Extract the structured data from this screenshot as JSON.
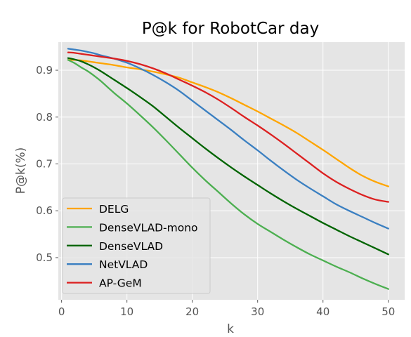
{
  "chart_data": {
    "type": "line",
    "title": "P@k for RobotCar day",
    "xlabel": "k",
    "ylabel": "P@k(%)",
    "xlim": [
      -0.5,
      52.5
    ],
    "ylim": [
      0.41,
      0.96
    ],
    "xticks": [
      0,
      10,
      20,
      30,
      40,
      50
    ],
    "yticks": [
      0.5,
      0.6,
      0.7,
      0.8,
      0.9
    ],
    "ytick_labels": [
      "0.5",
      "0.6",
      "0.7",
      "0.8",
      "0.9"
    ],
    "grid": true,
    "legend_position": "lower-left",
    "x": [
      1,
      2,
      3,
      4,
      5,
      6,
      8,
      10,
      12,
      14,
      16,
      18,
      20,
      22,
      24,
      26,
      28,
      30,
      32,
      34,
      36,
      38,
      40,
      42,
      44,
      46,
      48,
      50
    ],
    "series": [
      {
        "name": "DELG",
        "color": "#ffa500",
        "values": [
          0.922,
          0.922,
          0.921,
          0.919,
          0.917,
          0.915,
          0.911,
          0.906,
          0.902,
          0.897,
          0.891,
          0.884,
          0.874,
          0.864,
          0.853,
          0.84,
          0.826,
          0.812,
          0.797,
          0.782,
          0.766,
          0.748,
          0.73,
          0.711,
          0.692,
          0.675,
          0.662,
          0.652
        ]
      },
      {
        "name": "DenseVLAD-mono",
        "color": "#4caf50",
        "values": [
          0.922,
          0.915,
          0.906,
          0.898,
          0.888,
          0.877,
          0.852,
          0.829,
          0.804,
          0.778,
          0.75,
          0.721,
          0.692,
          0.665,
          0.64,
          0.615,
          0.592,
          0.572,
          0.555,
          0.538,
          0.522,
          0.507,
          0.494,
          0.481,
          0.469,
          0.456,
          0.444,
          0.433
        ]
      },
      {
        "name": "DenseVLAD",
        "color": "#006400",
        "values": [
          0.926,
          0.923,
          0.919,
          0.913,
          0.906,
          0.898,
          0.88,
          0.862,
          0.843,
          0.823,
          0.8,
          0.777,
          0.755,
          0.733,
          0.712,
          0.692,
          0.673,
          0.655,
          0.637,
          0.62,
          0.604,
          0.589,
          0.574,
          0.56,
          0.546,
          0.533,
          0.52,
          0.507
        ]
      },
      {
        "name": "NetVLAD",
        "color": "#3a7fc1",
        "values": [
          0.946,
          0.944,
          0.942,
          0.939,
          0.936,
          0.932,
          0.925,
          0.916,
          0.904,
          0.89,
          0.874,
          0.856,
          0.835,
          0.814,
          0.793,
          0.772,
          0.75,
          0.729,
          0.707,
          0.686,
          0.666,
          0.648,
          0.631,
          0.614,
          0.6,
          0.587,
          0.574,
          0.562
        ]
      },
      {
        "name": "AP-GeM",
        "color": "#dc2020",
        "values": [
          0.938,
          0.937,
          0.935,
          0.933,
          0.931,
          0.929,
          0.925,
          0.92,
          0.913,
          0.904,
          0.893,
          0.88,
          0.867,
          0.853,
          0.837,
          0.819,
          0.8,
          0.782,
          0.763,
          0.743,
          0.722,
          0.701,
          0.68,
          0.662,
          0.647,
          0.634,
          0.624,
          0.619
        ]
      }
    ]
  },
  "colors": {
    "plot_background": "#e5e5e5",
    "grid": "#ffffff",
    "legend_background": "#e5e5e5",
    "legend_border": "#cccccc"
  }
}
